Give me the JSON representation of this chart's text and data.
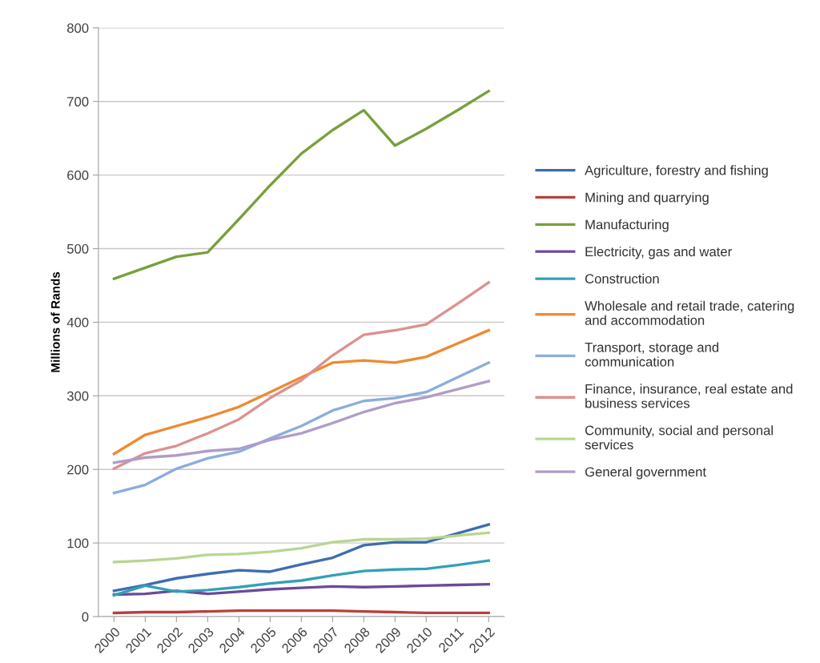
{
  "chart_data": {
    "type": "line",
    "ylabel": "Millions of Rands",
    "categories": [
      "2000",
      "2001",
      "2002",
      "2003",
      "2004",
      "2005",
      "2006",
      "2007",
      "2008",
      "2009",
      "2010",
      "2011",
      "2012"
    ],
    "ylim": [
      0,
      800
    ],
    "yticks": [
      0,
      100,
      200,
      300,
      400,
      500,
      600,
      700,
      800
    ],
    "grid": "y",
    "legend": "right",
    "marker": "none",
    "line_style": "solid",
    "series": [
      {
        "name": "Agriculture, forestry and fishing",
        "color": "#3e6db0",
        "values": [
          35,
          43,
          52,
          58,
          63,
          61,
          71,
          80,
          97,
          101,
          101,
          113,
          125
        ]
      },
      {
        "name": "Mining and quarrying",
        "color": "#b8403c",
        "values": [
          5,
          6,
          6,
          7,
          8,
          8,
          8,
          8,
          7,
          6,
          5,
          5,
          5
        ]
      },
      {
        "name": "Manufacturing",
        "color": "#77a03c",
        "values": [
          459,
          474,
          489,
          495,
          540,
          586,
          629,
          661,
          688,
          640,
          663,
          688,
          714
        ]
      },
      {
        "name": "Electricity, gas and water",
        "color": "#6a4a9a",
        "values": [
          30,
          31,
          35,
          31,
          34,
          37,
          39,
          41,
          40,
          41,
          42,
          43,
          44
        ]
      },
      {
        "name": "Construction",
        "color": "#32a0b8",
        "values": [
          29,
          42,
          34,
          36,
          40,
          45,
          49,
          56,
          62,
          64,
          65,
          70,
          76
        ]
      },
      {
        "name": "Wholesale and retail trade, catering\nand accommodation",
        "color": "#ee8a30",
        "values": [
          221,
          247,
          259,
          271,
          285,
          305,
          325,
          345,
          348,
          345,
          353,
          371,
          389
        ]
      },
      {
        "name": "Transport, storage and\ncommunication",
        "color": "#8aaedc",
        "values": [
          168,
          179,
          201,
          215,
          224,
          242,
          259,
          280,
          293,
          297,
          305,
          325,
          345
        ]
      },
      {
        "name": "Finance, insurance, real estate and\nbusiness services",
        "color": "#dc9190",
        "values": [
          201,
          222,
          232,
          249,
          268,
          297,
          321,
          355,
          383,
          389,
          397,
          425,
          454
        ]
      },
      {
        "name": "Community, social and personal\nservices",
        "color": "#b8d690",
        "values": [
          74,
          76,
          79,
          84,
          85,
          88,
          93,
          101,
          105,
          105,
          106,
          110,
          114
        ]
      },
      {
        "name": "General government",
        "color": "#b09cc8",
        "values": [
          209,
          216,
          219,
          225,
          228,
          240,
          249,
          263,
          278,
          290,
          298,
          309,
          320
        ]
      }
    ]
  }
}
